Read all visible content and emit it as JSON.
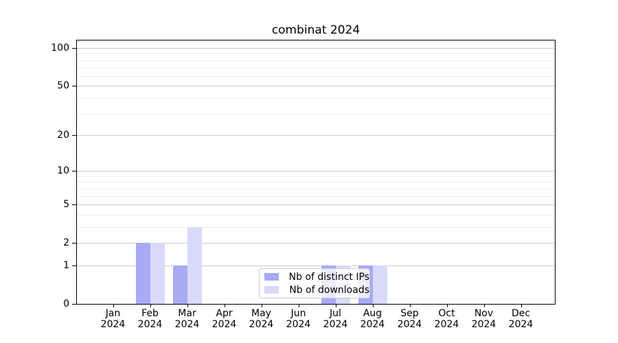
{
  "chart_data": {
    "type": "bar",
    "title": "combinat 2024",
    "categories": [
      "Jan 2024",
      "Feb 2024",
      "Mar 2024",
      "Apr 2024",
      "May 2024",
      "Jun 2024",
      "Jul 2024",
      "Aug 2024",
      "Sep 2024",
      "Oct 2024",
      "Nov 2024",
      "Dec 2024"
    ],
    "series": [
      {
        "name": "Nb of distinct IPs",
        "color": "#a9a9f4",
        "values": [
          0,
          2,
          1,
          0,
          0,
          0,
          1,
          1,
          0,
          0,
          0,
          0
        ]
      },
      {
        "name": "Nb of downloads",
        "color": "#d9d9fa",
        "values": [
          0,
          2,
          3,
          0,
          0,
          0,
          1,
          1,
          0,
          0,
          0,
          0
        ]
      }
    ],
    "xlabel": "",
    "ylabel": "",
    "yscale": "log10(1+x)",
    "ylim": [
      0,
      115
    ],
    "yticks": [
      0,
      1,
      2,
      5,
      10,
      20,
      50,
      100
    ],
    "grid": {
      "major": [
        1,
        2,
        5,
        10,
        20,
        50,
        100
      ],
      "minor": [
        3,
        4,
        6,
        7,
        8,
        9,
        30,
        40,
        60,
        70,
        80,
        90
      ]
    },
    "legend_position": "lower center"
  },
  "colors": {
    "bar_distinct_ips": "#a9a9f4",
    "bar_downloads": "#d9d9fa",
    "grid_major": "#c9c9c9",
    "grid_minor": "#ececec",
    "axis": "#000000",
    "text": "#000000",
    "legend_border": "#cccccc",
    "legend_bg": "rgba(255,255,255,0.78)"
  }
}
